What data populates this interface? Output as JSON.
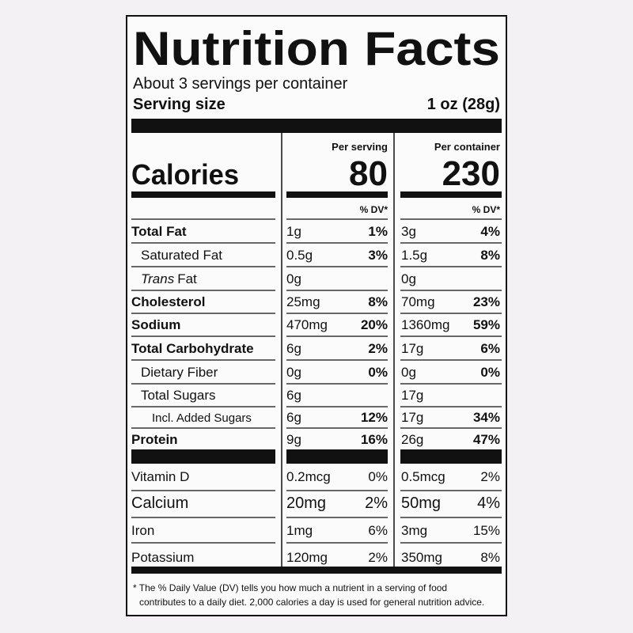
{
  "title": "Nutrition Facts",
  "servings": "About 3 servings per container",
  "serving_size_label": "Serving size",
  "serving_size": "1 oz (28g)",
  "calories_label": "Calories",
  "columns": [
    {
      "heading": "Per serving",
      "calories": "80",
      "dv_heading": "% DV*"
    },
    {
      "heading": "Per container",
      "calories": "230",
      "dv_heading": "% DV*"
    }
  ],
  "rows": [
    {
      "name": "Total Fat",
      "serving_amount": "1g",
      "serving_dv": "1%",
      "container_amount": "3g",
      "container_dv": "4%"
    },
    {
      "name": "Saturated Fat",
      "serving_amount": "0.5g",
      "serving_dv": "3%",
      "container_amount": "1.5g",
      "container_dv": "8%"
    },
    {
      "name_italic": "Trans",
      "name": "Fat",
      "serving_amount": "0g",
      "container_amount": "0g"
    },
    {
      "name": "Cholesterol",
      "serving_amount": "25mg",
      "serving_dv": "8%",
      "container_amount": "70mg",
      "container_dv": "23%"
    },
    {
      "name": "Sodium",
      "serving_amount": "470mg",
      "serving_dv": "20%",
      "container_amount": "1360mg",
      "container_dv": "59%"
    },
    {
      "name": "Total Carbohydrate",
      "serving_amount": "6g",
      "serving_dv": "2%",
      "container_amount": "17g",
      "container_dv": "6%"
    },
    {
      "name": "Dietary Fiber",
      "serving_amount": "0g",
      "serving_dv": "0%",
      "container_amount": "0g",
      "container_dv": "0%"
    },
    {
      "name": "Total Sugars",
      "serving_amount": "6g",
      "container_amount": "17g"
    },
    {
      "name": "Incl. Added Sugars",
      "serving_amount": "6g",
      "serving_dv": "12%",
      "container_amount": "17g",
      "container_dv": "34%"
    },
    {
      "name": "Protein",
      "serving_amount": "9g",
      "serving_dv": "16%",
      "container_amount": "26g",
      "container_dv": "47%"
    },
    {
      "name": "Vitamin D",
      "serving_amount": "0.2mcg",
      "serving_dv": "0%",
      "container_amount": "0.5mcg",
      "container_dv": "2%"
    },
    {
      "name": "Calcium",
      "serving_amount": "20mg",
      "serving_dv": "2%",
      "container_amount": "50mg",
      "container_dv": "4%"
    },
    {
      "name": "Iron",
      "serving_amount": "1mg",
      "serving_dv": "6%",
      "container_amount": "3mg",
      "container_dv": "15%"
    },
    {
      "name": "Potassium",
      "serving_amount": "120mg",
      "serving_dv": "2%",
      "container_amount": "350mg",
      "container_dv": "8%"
    }
  ],
  "footnote_lines": [
    "* The % Daily Value (DV) tells you how much a nutrient in a serving of food",
    "contributes to a daily diet. 2,000 calories a day is used for general nutrition advice."
  ]
}
